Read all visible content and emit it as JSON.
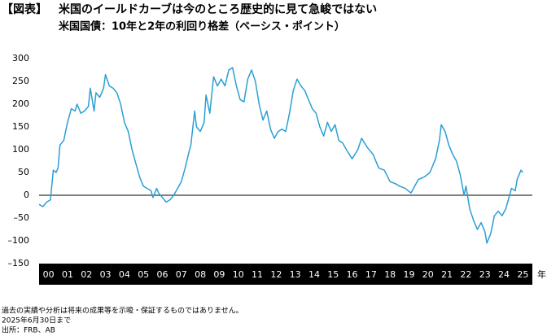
{
  "header": {
    "tag": "【図表】",
    "title": "米国のイールドカーブは今のところ歴史的に見て急峻ではない"
  },
  "chart_data": {
    "type": "line",
    "subtitle": "米国国債：10年と2年の利回り格差（ベーシス・ポイント）",
    "x_unit": "年",
    "x": [
      0.0,
      0.2,
      0.4,
      0.6,
      0.75,
      0.9,
      1.0,
      1.1,
      1.3,
      1.5,
      1.7,
      1.9,
      2.0,
      2.2,
      2.4,
      2.6,
      2.7,
      2.9,
      3.0,
      3.2,
      3.4,
      3.5,
      3.7,
      3.9,
      4.1,
      4.3,
      4.5,
      4.7,
      4.9,
      5.1,
      5.3,
      5.5,
      5.7,
      5.9,
      6.0,
      6.2,
      6.3,
      6.5,
      6.7,
      6.9,
      7.1,
      7.3,
      7.5,
      7.7,
      7.9,
      8.0,
      8.2,
      8.3,
      8.5,
      8.7,
      8.8,
      9.0,
      9.2,
      9.4,
      9.6,
      9.8,
      10.0,
      10.2,
      10.4,
      10.6,
      10.8,
      11.0,
      11.2,
      11.4,
      11.6,
      11.8,
      12.0,
      12.2,
      12.4,
      12.6,
      12.8,
      13.0,
      13.2,
      13.4,
      13.6,
      13.8,
      14.0,
      14.2,
      14.4,
      14.6,
      14.8,
      15.0,
      15.2,
      15.4,
      15.6,
      15.8,
      16.0,
      16.2,
      16.5,
      16.8,
      17.0,
      17.3,
      17.6,
      17.9,
      18.2,
      18.5,
      18.8,
      19.0,
      19.3,
      19.6,
      19.8,
      20.0,
      20.3,
      20.6,
      20.9,
      21.1,
      21.2,
      21.4,
      21.6,
      21.8,
      22.0,
      22.2,
      22.4,
      22.5,
      22.7,
      22.9,
      23.1,
      23.3,
      23.5,
      23.6,
      23.8,
      24.0,
      24.2,
      24.4,
      24.6,
      24.8,
      24.9,
      25.1,
      25.2,
      25.4,
      25.5
    ],
    "series": [
      {
        "color": "#2b9fd4",
        "values": [
          -20,
          -25,
          -15,
          -10,
          55,
          50,
          60,
          110,
          120,
          160,
          190,
          185,
          200,
          180,
          185,
          195,
          235,
          185,
          225,
          215,
          235,
          265,
          240,
          235,
          225,
          200,
          160,
          140,
          100,
          70,
          40,
          20,
          15,
          10,
          -5,
          15,
          5,
          -5,
          -15,
          -10,
          0,
          15,
          30,
          60,
          95,
          110,
          185,
          150,
          140,
          160,
          220,
          180,
          260,
          240,
          255,
          240,
          275,
          280,
          240,
          210,
          205,
          255,
          275,
          250,
          200,
          165,
          185,
          145,
          125,
          140,
          145,
          140,
          180,
          230,
          255,
          240,
          230,
          210,
          190,
          180,
          150,
          130,
          160,
          140,
          155,
          120,
          115,
          100,
          80,
          100,
          125,
          105,
          90,
          60,
          55,
          30,
          25,
          20,
          15,
          5,
          20,
          35,
          40,
          50,
          80,
          120,
          155,
          140,
          110,
          90,
          75,
          45,
          0,
          20,
          -30,
          -55,
          -75,
          -60,
          -80,
          -105,
          -85,
          -45,
          -35,
          -45,
          -30,
          0,
          15,
          10,
          35,
          55,
          50
        ]
      }
    ],
    "xlim": [
      0,
      26
    ],
    "xticks": [
      {
        "value": 0,
        "label": "00"
      },
      {
        "value": 1,
        "label": "01"
      },
      {
        "value": 2,
        "label": "02"
      },
      {
        "value": 3,
        "label": "03"
      },
      {
        "value": 4,
        "label": "04"
      },
      {
        "value": 5,
        "label": "05"
      },
      {
        "value": 6,
        "label": "06"
      },
      {
        "value": 7,
        "label": "07"
      },
      {
        "value": 8,
        "label": "08"
      },
      {
        "value": 9,
        "label": "09"
      },
      10,
      11,
      12,
      13,
      14,
      15,
      16,
      17,
      18,
      19,
      20,
      21,
      22,
      23,
      24,
      25
    ],
    "ylim": [
      -150,
      300
    ],
    "yticks": [
      300,
      250,
      200,
      150,
      100,
      50,
      0,
      {
        "value": -50,
        "label": "–50"
      },
      {
        "value": -100,
        "label": "–100"
      },
      {
        "value": -150,
        "label": "–150"
      }
    ]
  },
  "footer": {
    "notes": [
      "過去の実績や分析は将来の成果等を示唆・保証するものではありません。",
      "2025年6月30日まで",
      "出所：FRB、AB"
    ]
  }
}
